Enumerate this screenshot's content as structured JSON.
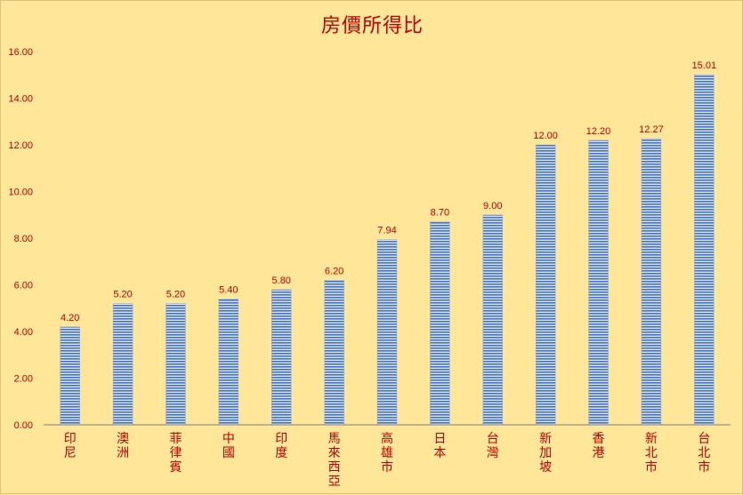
{
  "chart_data": {
    "type": "bar",
    "title": "房價所得比",
    "categories": [
      "印尼",
      "澳洲",
      "菲律賓",
      "中國",
      "印度",
      "馬來西亞",
      "高雄市",
      "日本",
      "台灣",
      "新加坡",
      "香港",
      "新北市",
      "台北市"
    ],
    "values": [
      4.2,
      5.2,
      5.2,
      5.4,
      5.8,
      6.2,
      7.94,
      8.7,
      9.0,
      12.0,
      12.2,
      12.27,
      15.01
    ],
    "data_labels": [
      "4.20",
      "5.20",
      "5.20",
      "5.40",
      "5.80",
      "6.20",
      "7.94",
      "8.70",
      "9.00",
      "12.00",
      "12.20",
      "12.27",
      "15.01"
    ],
    "y_ticks": [
      "0.00",
      "2.00",
      "4.00",
      "6.00",
      "8.00",
      "10.00",
      "12.00",
      "14.00",
      "16.00"
    ],
    "ylim": [
      0,
      16
    ],
    "grid": false,
    "legend": "none",
    "colors": {
      "background": "#FFE699",
      "bar_stripe_dark": "#4472C4",
      "bar_stripe_light": "#DCE6F4",
      "text": "#C00000",
      "axis": "#7F7F7F"
    }
  }
}
